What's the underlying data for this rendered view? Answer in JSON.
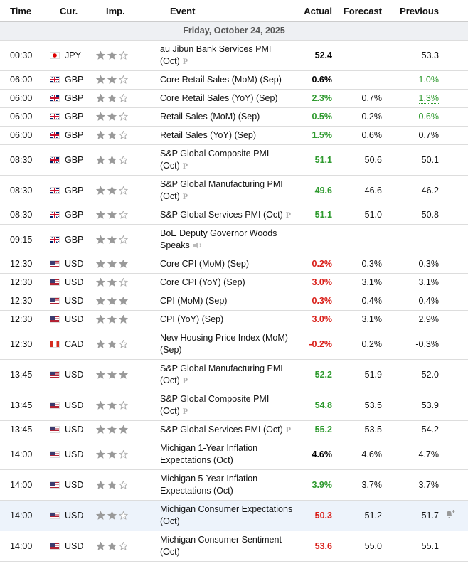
{
  "header": [
    "Time",
    "Cur.",
    "Imp.",
    "Event",
    "Actual",
    "Forecast",
    "Previous"
  ],
  "date": "Friday, October 24, 2025",
  "rows": [
    {
      "time": "00:30",
      "currency": "JPY",
      "importance": 2,
      "event": "au Jibun Bank Services PMI (Oct)",
      "badge": "P",
      "actual": "52.4",
      "actual_color": "#000000",
      "previous": "53.3"
    },
    {
      "time": "06:00",
      "currency": "GBP",
      "importance": 2,
      "event": "Core Retail Sales (MoM) (Sep)",
      "actual": "0.6%",
      "actual_color": "#000000",
      "previous": "1.0%",
      "previous_revised": true
    },
    {
      "time": "06:00",
      "currency": "GBP",
      "importance": 2,
      "event": "Core Retail Sales (YoY) (Sep)",
      "actual": "2.3%",
      "actual_color": "#2e9a2e",
      "forecast": "0.7%",
      "previous": "1.3%",
      "previous_revised": true
    },
    {
      "time": "06:00",
      "currency": "GBP",
      "importance": 2,
      "event": "Retail Sales (MoM) (Sep)",
      "actual": "0.5%",
      "actual_color": "#2e9a2e",
      "forecast": "-0.2%",
      "previous": "0.6%",
      "previous_revised": true
    },
    {
      "time": "06:00",
      "currency": "GBP",
      "importance": 2,
      "event": "Retail Sales (YoY) (Sep)",
      "actual": "1.5%",
      "actual_color": "#2e9a2e",
      "forecast": "0.6%",
      "previous": "0.7%"
    },
    {
      "time": "08:30",
      "currency": "GBP",
      "importance": 2,
      "event": "S&P Global Composite PMI (Oct)",
      "badge": "P",
      "actual": "51.1",
      "actual_color": "#2e9a2e",
      "forecast": "50.6",
      "previous": "50.1"
    },
    {
      "time": "08:30",
      "currency": "GBP",
      "importance": 2,
      "event": "S&P Global Manufacturing PMI (Oct)",
      "badge": "P",
      "actual": "49.6",
      "actual_color": "#2e9a2e",
      "forecast": "46.6",
      "previous": "46.2"
    },
    {
      "time": "08:30",
      "currency": "GBP",
      "importance": 2,
      "event": "S&P Global Services PMI (Oct)",
      "badge": "P",
      "actual": "51.1",
      "actual_color": "#2e9a2e",
      "forecast": "51.0",
      "previous": "50.8"
    },
    {
      "time": "09:15",
      "currency": "GBP",
      "importance": 2,
      "event": "BoE Deputy Governor Woods Speaks",
      "speech": true
    },
    {
      "time": "12:30",
      "currency": "USD",
      "importance": 3,
      "event": "Core CPI (MoM) (Sep)",
      "actual": "0.2%",
      "actual_color": "#d91e18",
      "forecast": "0.3%",
      "previous": "0.3%"
    },
    {
      "time": "12:30",
      "currency": "USD",
      "importance": 2,
      "event": "Core CPI (YoY) (Sep)",
      "actual": "3.0%",
      "actual_color": "#d91e18",
      "forecast": "3.1%",
      "previous": "3.1%"
    },
    {
      "time": "12:30",
      "currency": "USD",
      "importance": 3,
      "event": "CPI (MoM) (Sep)",
      "actual": "0.3%",
      "actual_color": "#d91e18",
      "forecast": "0.4%",
      "previous": "0.4%"
    },
    {
      "time": "12:30",
      "currency": "USD",
      "importance": 3,
      "event": "CPI (YoY) (Sep)",
      "actual": "3.0%",
      "actual_color": "#d91e18",
      "forecast": "3.1%",
      "previous": "2.9%"
    },
    {
      "time": "12:30",
      "currency": "CAD",
      "importance": 2,
      "event": "New Housing Price Index (MoM) (Sep)",
      "actual": "-0.2%",
      "actual_color": "#d91e18",
      "forecast": "0.2%",
      "previous": "-0.3%"
    },
    {
      "time": "13:45",
      "currency": "USD",
      "importance": 3,
      "event": "S&P Global Manufacturing PMI (Oct)",
      "badge": "P",
      "actual": "52.2",
      "actual_color": "#2e9a2e",
      "forecast": "51.9",
      "previous": "52.0"
    },
    {
      "time": "13:45",
      "currency": "USD",
      "importance": 2,
      "event": "S&P Global Composite PMI (Oct)",
      "badge": "P",
      "actual": "54.8",
      "actual_color": "#2e9a2e",
      "forecast": "53.5",
      "previous": "53.9"
    },
    {
      "time": "13:45",
      "currency": "USD",
      "importance": 3,
      "event": "S&P Global Services PMI (Oct)",
      "badge": "P",
      "actual": "55.2",
      "actual_color": "#2e9a2e",
      "forecast": "53.5",
      "previous": "54.2"
    },
    {
      "time": "14:00",
      "currency": "USD",
      "importance": 2,
      "event": "Michigan 1-Year Inflation Expectations (Oct)",
      "actual": "4.6%",
      "actual_color": "#000000",
      "forecast": "4.6%",
      "previous": "4.7%"
    },
    {
      "time": "14:00",
      "currency": "USD",
      "importance": 2,
      "event": "Michigan 5-Year Inflation Expectations (Oct)",
      "actual": "3.9%",
      "actual_color": "#2e9a2e",
      "forecast": "3.7%",
      "previous": "3.7%"
    },
    {
      "time": "14:00",
      "currency": "USD",
      "importance": 2,
      "event": "Michigan Consumer Expectations (Oct)",
      "actual": "50.3",
      "actual_color": "#d91e18",
      "forecast": "51.2",
      "previous": "51.7",
      "highlight": true,
      "alert": true
    },
    {
      "time": "14:00",
      "currency": "USD",
      "importance": 2,
      "event": "Michigan Consumer Sentiment (Oct)",
      "actual": "53.6",
      "actual_color": "#d91e18",
      "forecast": "55.0",
      "previous": "55.1"
    }
  ]
}
